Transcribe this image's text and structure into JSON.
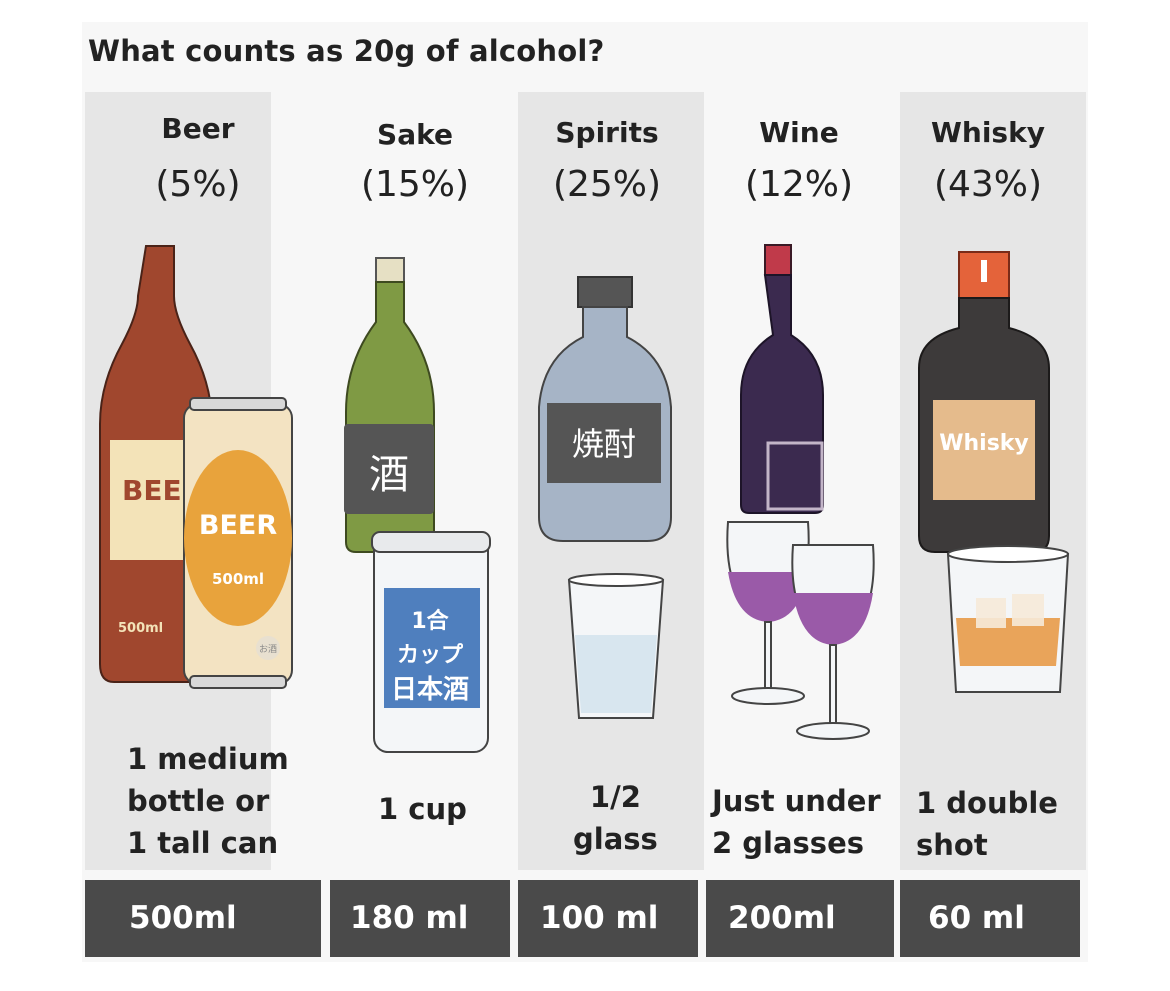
{
  "title": "What counts as 20g of alcohol?",
  "drinks": [
    {
      "name": "Beer",
      "abv": "(5%)",
      "description": [
        "1 medium",
        "bottle or",
        "1 tall can"
      ],
      "amount": "500ml",
      "labels": {
        "bottle": "BEE",
        "can": "BEER",
        "can_size": "500ml",
        "bottle_size": "500ml",
        "seal": "お酒"
      }
    },
    {
      "name": "Sake",
      "abv": "(15%)",
      "description": [
        "1 cup"
      ],
      "amount": "180 ml",
      "labels": {
        "bottle": "酒",
        "cup": [
          "1合",
          "カップ",
          "日本酒"
        ]
      }
    },
    {
      "name": "Spirits",
      "abv": "(25%)",
      "description": [
        "1/2",
        "glass"
      ],
      "amount": "100 ml",
      "labels": {
        "bottle": "焼酎"
      }
    },
    {
      "name": "Wine",
      "abv": "(12%)",
      "description": [
        "Just under",
        "2 glasses"
      ],
      "amount": "200ml",
      "labels": {}
    },
    {
      "name": "Whisky",
      "abv": "(43%)",
      "description": [
        "1 double",
        "shot"
      ],
      "amount": "60 ml",
      "labels": {
        "bottle": "Whisky"
      }
    }
  ],
  "colors": {
    "beer_bottle": "#a0472e",
    "beer_can": "#f3e3c2",
    "beer_can_label": "#e8a33c",
    "sake_bottle": "#7f9a44",
    "sake_cup_label": "#4f7fbe",
    "spirits_bottle": "#a6b4c6",
    "label_dark": "#555555",
    "wine_bottle": "#3b2a4f",
    "wine_liquid": "#9a5aa8",
    "whisky_bottle": "#3d3a3a",
    "whisky_label": "#e5bb8c",
    "whisky_cap": "#e4633a",
    "footer": "#4a4a4a"
  },
  "icons": [
    "beer-bottle-icon",
    "beer-can-icon",
    "sake-bottle-icon",
    "sake-cup-icon",
    "shochu-bottle-icon",
    "water-glass-icon",
    "wine-bottle-icon",
    "wine-glass-icon",
    "whisky-bottle-icon",
    "rocks-glass-icon"
  ]
}
